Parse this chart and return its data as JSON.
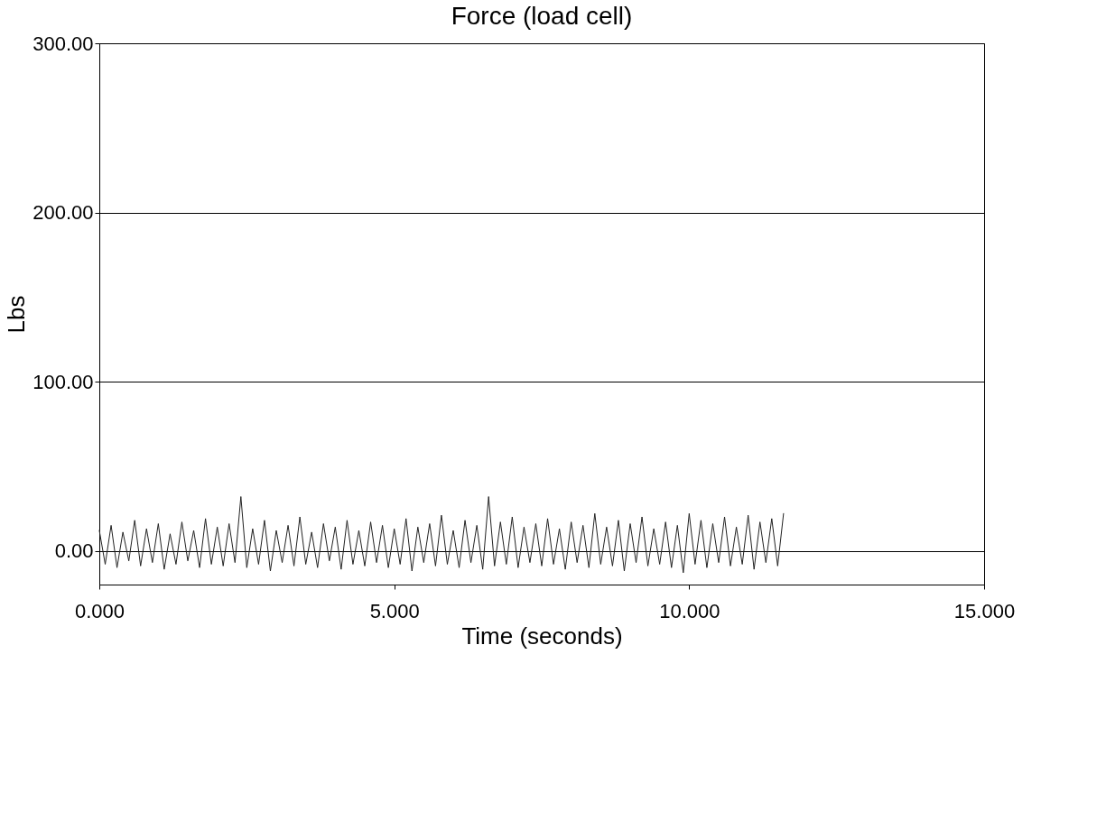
{
  "chart_data": {
    "type": "line",
    "title": "Force (load cell)",
    "xlabel": "Time (seconds)",
    "ylabel": "Lbs",
    "x": [
      0.0,
      0.1,
      0.2,
      0.3,
      0.4,
      0.5,
      0.6,
      0.7,
      0.8,
      0.9,
      1.0,
      1.1,
      1.2,
      1.3,
      1.4,
      1.5,
      1.6,
      1.7,
      1.8,
      1.9,
      2.0,
      2.1,
      2.2,
      2.3,
      2.4,
      2.5,
      2.6,
      2.7,
      2.8,
      2.9,
      3.0,
      3.1,
      3.2,
      3.3,
      3.4,
      3.5,
      3.6,
      3.7,
      3.8,
      3.9,
      4.0,
      4.1,
      4.2,
      4.3,
      4.4,
      4.5,
      4.6,
      4.7,
      4.8,
      4.9,
      5.0,
      5.1,
      5.2,
      5.3,
      5.4,
      5.5,
      5.6,
      5.7,
      5.8,
      5.9,
      6.0,
      6.1,
      6.2,
      6.3,
      6.4,
      6.5,
      6.6,
      6.7,
      6.8,
      6.9,
      7.0,
      7.1,
      7.2,
      7.3,
      7.4,
      7.5,
      7.6,
      7.7,
      7.8,
      7.9,
      8.0,
      8.1,
      8.2,
      8.3,
      8.4,
      8.5,
      8.6,
      8.7,
      8.8,
      8.9,
      9.0,
      9.1,
      9.2,
      9.3,
      9.4,
      9.5,
      9.6,
      9.7,
      9.8,
      9.9,
      10.0,
      10.1,
      10.2,
      10.3,
      10.4,
      10.5,
      10.6,
      10.7,
      10.8,
      10.9,
      11.0,
      11.1,
      11.2,
      11.3,
      11.4,
      11.5,
      11.6
    ],
    "series": [
      {
        "color": "#222222",
        "values": [
          12,
          -8,
          15,
          -10,
          11,
          -6,
          18,
          -9,
          13,
          -7,
          16,
          -11,
          10,
          -8,
          17,
          -6,
          12,
          -10,
          19,
          -8,
          14,
          -9,
          16,
          -7,
          32,
          -10,
          13,
          -8,
          18,
          -12,
          12,
          -7,
          15,
          -9,
          20,
          -8,
          11,
          -10,
          16,
          -6,
          14,
          -11,
          18,
          -8,
          12,
          -9,
          17,
          -7,
          15,
          -10,
          13,
          -8,
          19,
          -12,
          14,
          -7,
          16,
          -9,
          21,
          -8,
          12,
          -10,
          18,
          -7,
          15,
          -11,
          32,
          -9,
          17,
          -8,
          20,
          -10,
          14,
          -7,
          16,
          -9,
          19,
          -8,
          13,
          -11,
          17,
          -7,
          15,
          -10,
          22,
          -8,
          14,
          -9,
          18,
          -12,
          16,
          -7,
          20,
          -9,
          13,
          -8,
          17,
          -10,
          15,
          -13,
          22,
          -8,
          18,
          -10,
          16,
          -7,
          20,
          -9,
          14,
          -8,
          21,
          -11,
          17,
          -7,
          19,
          -9,
          22
        ]
      }
    ],
    "xlim": [
      0,
      15
    ],
    "ylim": [
      -20,
      300
    ],
    "xticks": [
      {
        "value": 0,
        "label": "0.000"
      },
      {
        "value": 5,
        "label": "5.000"
      },
      {
        "value": 10,
        "label": "10.000"
      },
      {
        "value": 15,
        "label": "15.000"
      }
    ],
    "yticks": [
      {
        "value": 0,
        "label": "0.00"
      },
      {
        "value": 100,
        "label": "100.00"
      },
      {
        "value": 200,
        "label": "200.00"
      },
      {
        "value": 300,
        "label": "300.00"
      }
    ],
    "grid": "y",
    "marker": "none",
    "line_style": "solid"
  }
}
